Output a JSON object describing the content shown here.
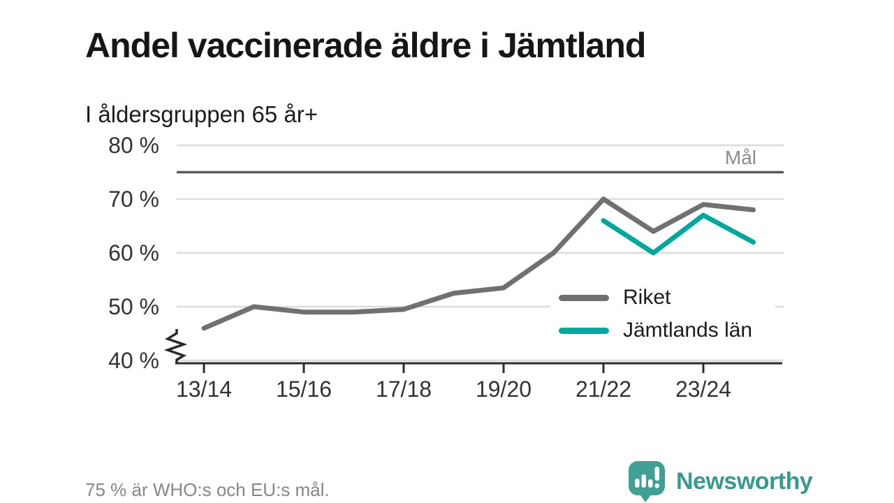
{
  "header": {
    "title": "Andel vaccinerade äldre i Jämtland",
    "subtitle": "I åldersgruppen 65 år+"
  },
  "chart_data": {
    "type": "line",
    "categories": [
      "13/14",
      "14/15",
      "15/16",
      "16/17",
      "17/18",
      "18/19",
      "19/20",
      "20/21",
      "21/22",
      "22/23",
      "23/24",
      "24/25"
    ],
    "x_tick_labels": [
      "13/14",
      "15/16",
      "17/18",
      "19/20",
      "21/22",
      "23/24"
    ],
    "series": [
      {
        "name": "Riket",
        "color": "#707070",
        "values": [
          46,
          50,
          49,
          49,
          49.5,
          52.5,
          53.5,
          60,
          70,
          64,
          69,
          68
        ]
      },
      {
        "name": "Jämtlands län",
        "color": "#00a79c",
        "values": [
          null,
          null,
          null,
          null,
          null,
          null,
          null,
          null,
          66,
          60,
          67,
          62
        ]
      }
    ],
    "goal": {
      "label": "Mål",
      "value": 75
    },
    "ylim": [
      40,
      80
    ],
    "yticks": [
      40,
      50,
      60,
      70,
      80
    ],
    "ytick_suffix": " %",
    "y_axis_break": true,
    "grid": "horizontal",
    "legend_position": "inside-right"
  },
  "footer": {
    "note": "75 % är WHO:s och EU:s mål.",
    "brand": "Newsworthy"
  },
  "colors": {
    "goal_line": "#5a5a5c",
    "gridline": "#dcdcdc",
    "axis": "#2b2b2b",
    "tick_text": "#333333",
    "muted_text": "#8b8b8b",
    "brand_teal": "#38998e"
  }
}
